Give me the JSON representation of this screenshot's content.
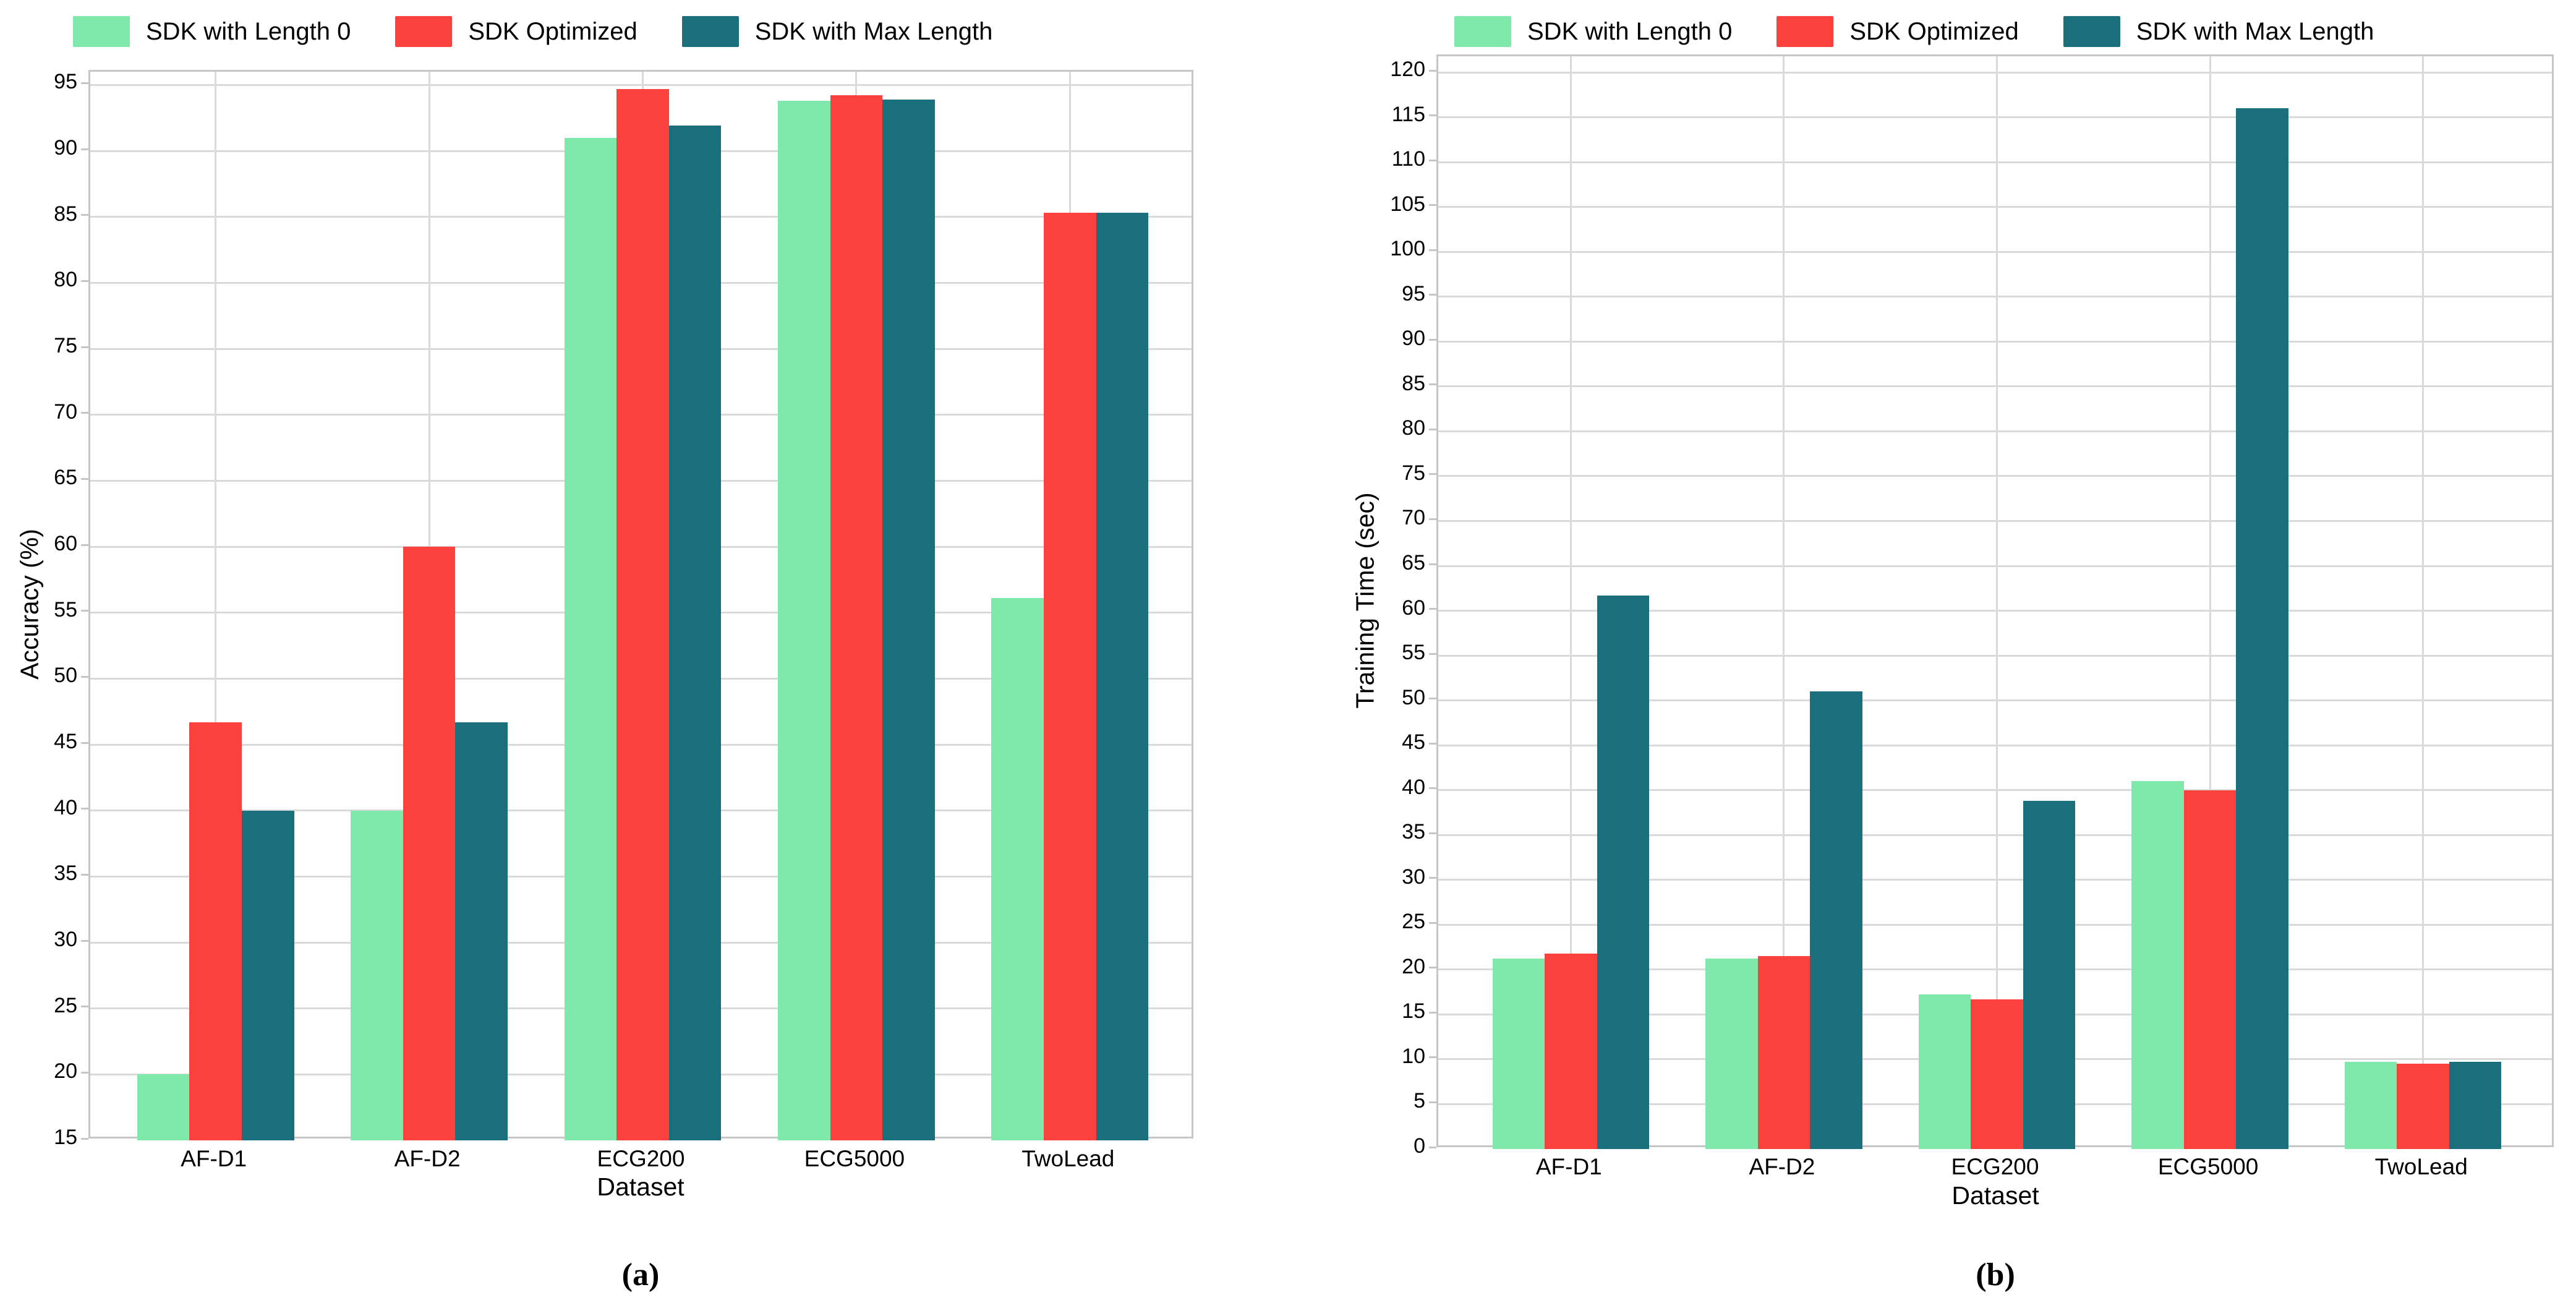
{
  "chart_data": [
    {
      "id": "a",
      "type": "bar",
      "caption": "(a)",
      "xlabel": "Dataset",
      "ylabel": "Accuracy (%)",
      "categories": [
        "AF-D1",
        "AF-D2",
        "ECG200",
        "ECG5000",
        "TwoLead"
      ],
      "series": [
        {
          "name": "SDK with Length 0",
          "color": "#7FE9AC",
          "values": [
            20,
            40,
            91,
            93.8,
            56.1
          ]
        },
        {
          "name": "SDK Optimized",
          "color": "#FA413D",
          "values": [
            46.7,
            60,
            94.7,
            94.2,
            85.3
          ]
        },
        {
          "name": "SDK with Max Length",
          "color": "#1A6F7D",
          "values": [
            40,
            46.7,
            91.9,
            93.9,
            85.3
          ]
        }
      ],
      "ylim": [
        15,
        96
      ],
      "ytick_start": 15,
      "ytick_end": 95,
      "ytick_step": 5,
      "grid": true,
      "legend_position": "top"
    },
    {
      "id": "b",
      "type": "bar",
      "caption": "(b)",
      "xlabel": "Dataset",
      "ylabel": "Training Time (sec)",
      "categories": [
        "AF-D1",
        "AF-D2",
        "ECG200",
        "ECG5000",
        "TwoLead"
      ],
      "series": [
        {
          "name": "SDK with Length 0",
          "color": "#7FE9AC",
          "values": [
            21.2,
            21.2,
            17.2,
            41,
            9.7
          ]
        },
        {
          "name": "SDK Optimized",
          "color": "#FA413D",
          "values": [
            21.8,
            21.5,
            16.7,
            40,
            9.5
          ]
        },
        {
          "name": "SDK with Max Length",
          "color": "#1A6F7D",
          "values": [
            61.7,
            51,
            38.8,
            116,
            9.7
          ]
        }
      ],
      "ylim": [
        0,
        121.8
      ],
      "ytick_start": 0,
      "ytick_end": 120,
      "ytick_step": 5,
      "grid": true,
      "legend_position": "top"
    }
  ],
  "colors": {
    "series_green": "#7FE9AC",
    "series_red": "#FA413D",
    "series_teal": "#1A6F7D",
    "gridline": "#dadada",
    "plot_border": "#c6c6c6",
    "text": "#000000",
    "background": "#ffffff"
  }
}
